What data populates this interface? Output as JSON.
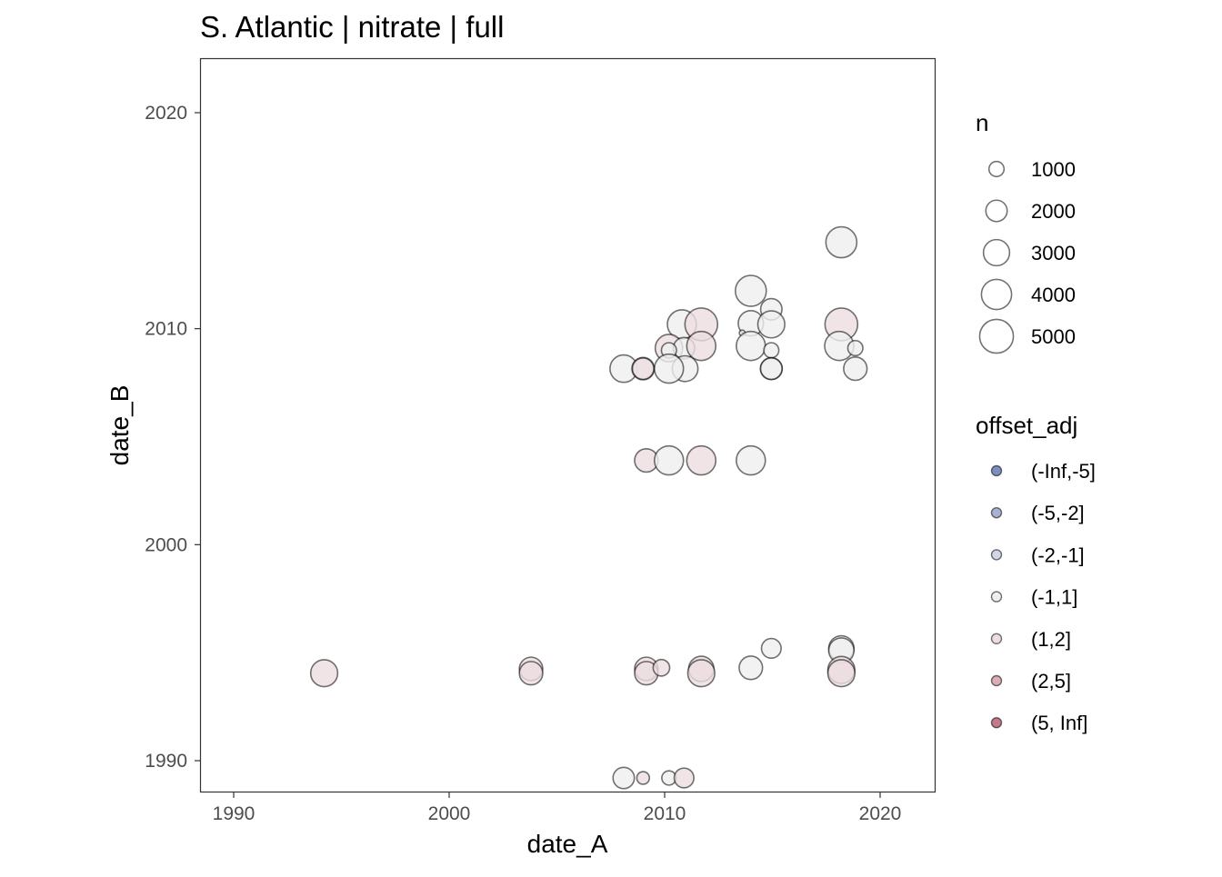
{
  "chart_data": {
    "type": "scatter",
    "title": "S. Atlantic | nitrate | full",
    "xlabel": "date_A",
    "ylabel": "date_B",
    "xlim": [
      1988.5,
      2022.5
    ],
    "ylim": [
      1988.6,
      2022.5
    ],
    "xticks": [
      1990,
      2000,
      2010,
      2020
    ],
    "yticks": [
      1990,
      2000,
      2010,
      2020
    ],
    "grid": false,
    "legend_placement": "right",
    "size_legend": {
      "title": "n",
      "values": [
        1000,
        2000,
        3000,
        4000,
        5000
      ]
    },
    "color_legend": {
      "title": "offset_adj",
      "entries": [
        {
          "label": "(-Inf,-5]",
          "color": "#7d8fbf"
        },
        {
          "label": "(-5,-2]",
          "color": "#aab2d3"
        },
        {
          "label": "(-2,-1]",
          "color": "#d3d6e8"
        },
        {
          "label": "(-1,1]",
          "color": "#efefef"
        },
        {
          "label": "(1,2]",
          "color": "#ecdde0"
        },
        {
          "label": "(2,5]",
          "color": "#d9aeb7"
        },
        {
          "label": "(5, Inf]",
          "color": "#c27a8a"
        }
      ]
    },
    "points": [
      {
        "x": 2018.2,
        "y": 2014.0,
        "n": 4200,
        "offset": "(-1,1]"
      },
      {
        "x": 2014.0,
        "y": 2011.75,
        "n": 4200,
        "offset": "(-1,1]"
      },
      {
        "x": 2014.95,
        "y": 2010.9,
        "n": 2000,
        "offset": "(-1,1]"
      },
      {
        "x": 2010.8,
        "y": 2010.2,
        "n": 3700,
        "offset": "(-1,1]"
      },
      {
        "x": 2011.7,
        "y": 2010.2,
        "n": 4700,
        "offset": "(1,2]"
      },
      {
        "x": 2014.0,
        "y": 2010.25,
        "n": 2800,
        "offset": "(-1,1]"
      },
      {
        "x": 2014.95,
        "y": 2010.2,
        "n": 3200,
        "offset": "(-1,1]"
      },
      {
        "x": 2013.6,
        "y": 2009.8,
        "n": 150,
        "offset": "(-1,1]"
      },
      {
        "x": 2018.2,
        "y": 2010.2,
        "n": 4700,
        "offset": "(1,2]"
      },
      {
        "x": 2010.2,
        "y": 2009.1,
        "n": 3300,
        "offset": "(1,2]"
      },
      {
        "x": 2010.9,
        "y": 2009.1,
        "n": 2000,
        "offset": "(-1,1]"
      },
      {
        "x": 2010.2,
        "y": 2009.0,
        "n": 1000,
        "offset": "(-1,1]"
      },
      {
        "x": 2011.7,
        "y": 2009.2,
        "n": 3700,
        "offset": "(1,2]"
      },
      {
        "x": 2014.0,
        "y": 2009.2,
        "n": 3700,
        "offset": "(-1,1]"
      },
      {
        "x": 2014.95,
        "y": 2009.0,
        "n": 1000,
        "offset": "(-1,1]"
      },
      {
        "x": 2018.1,
        "y": 2009.2,
        "n": 3700,
        "offset": "(-1,1]"
      },
      {
        "x": 2018.85,
        "y": 2009.1,
        "n": 1000,
        "offset": "(-1,1]"
      },
      {
        "x": 2008.1,
        "y": 2008.15,
        "n": 3300,
        "offset": "(-1,1]"
      },
      {
        "x": 2009.0,
        "y": 2008.15,
        "n": 2200,
        "offset": "(-1,1]"
      },
      {
        "x": 2009.0,
        "y": 2008.15,
        "n": 2000,
        "offset": "(1,2]"
      },
      {
        "x": 2010.95,
        "y": 2008.15,
        "n": 2900,
        "offset": "(-1,1]"
      },
      {
        "x": 2010.2,
        "y": 2008.15,
        "n": 3700,
        "offset": "(-1,1]"
      },
      {
        "x": 2014.95,
        "y": 2008.15,
        "n": 2100,
        "offset": "(-1,1]"
      },
      {
        "x": 2014.95,
        "y": 2008.15,
        "n": 2000,
        "offset": "(-1,1]"
      },
      {
        "x": 2018.85,
        "y": 2008.15,
        "n": 2400,
        "offset": "(-1,1]"
      },
      {
        "x": 2009.15,
        "y": 2003.9,
        "n": 2400,
        "offset": "(1,2]"
      },
      {
        "x": 2010.2,
        "y": 2003.9,
        "n": 3700,
        "offset": "(-1,1]"
      },
      {
        "x": 2011.7,
        "y": 2003.9,
        "n": 3700,
        "offset": "(1,2]"
      },
      {
        "x": 2014.0,
        "y": 2003.9,
        "n": 3700,
        "offset": "(-1,1]"
      },
      {
        "x": 1994.2,
        "y": 1994.05,
        "n": 3200,
        "offset": "(1,2]"
      },
      {
        "x": 2003.8,
        "y": 1994.25,
        "n": 2400,
        "offset": "(1,2]"
      },
      {
        "x": 2003.8,
        "y": 1994.05,
        "n": 2400,
        "offset": "(1,2]"
      },
      {
        "x": 2009.15,
        "y": 1994.25,
        "n": 2400,
        "offset": "(1,2]"
      },
      {
        "x": 2009.15,
        "y": 1994.05,
        "n": 2400,
        "offset": "(1,2]"
      },
      {
        "x": 2009.85,
        "y": 1994.3,
        "n": 1200,
        "offset": "(1,2]"
      },
      {
        "x": 2011.7,
        "y": 1994.25,
        "n": 2800,
        "offset": "(1,2]"
      },
      {
        "x": 2011.7,
        "y": 1994.05,
        "n": 3200,
        "offset": "(1,2]"
      },
      {
        "x": 2014.0,
        "y": 1994.3,
        "n": 2400,
        "offset": "(-1,1]"
      },
      {
        "x": 2014.95,
        "y": 1995.2,
        "n": 1700,
        "offset": "(-1,1]"
      },
      {
        "x": 2018.2,
        "y": 1995.2,
        "n": 2800,
        "offset": "(-1,1]"
      },
      {
        "x": 2018.2,
        "y": 1995.1,
        "n": 2800,
        "offset": "(-1,1]"
      },
      {
        "x": 2018.2,
        "y": 1994.2,
        "n": 3200,
        "offset": "(1,2]"
      },
      {
        "x": 2018.2,
        "y": 1994.05,
        "n": 3200,
        "offset": "(1,2]"
      },
      {
        "x": 2008.1,
        "y": 1989.2,
        "n": 2000,
        "offset": "(-1,1]"
      },
      {
        "x": 2009.0,
        "y": 1989.2,
        "n": 700,
        "offset": "(1,2]"
      },
      {
        "x": 2010.2,
        "y": 1989.2,
        "n": 900,
        "offset": "(-1,1]"
      },
      {
        "x": 2010.9,
        "y": 1989.2,
        "n": 1700,
        "offset": "(1,2]"
      }
    ]
  }
}
